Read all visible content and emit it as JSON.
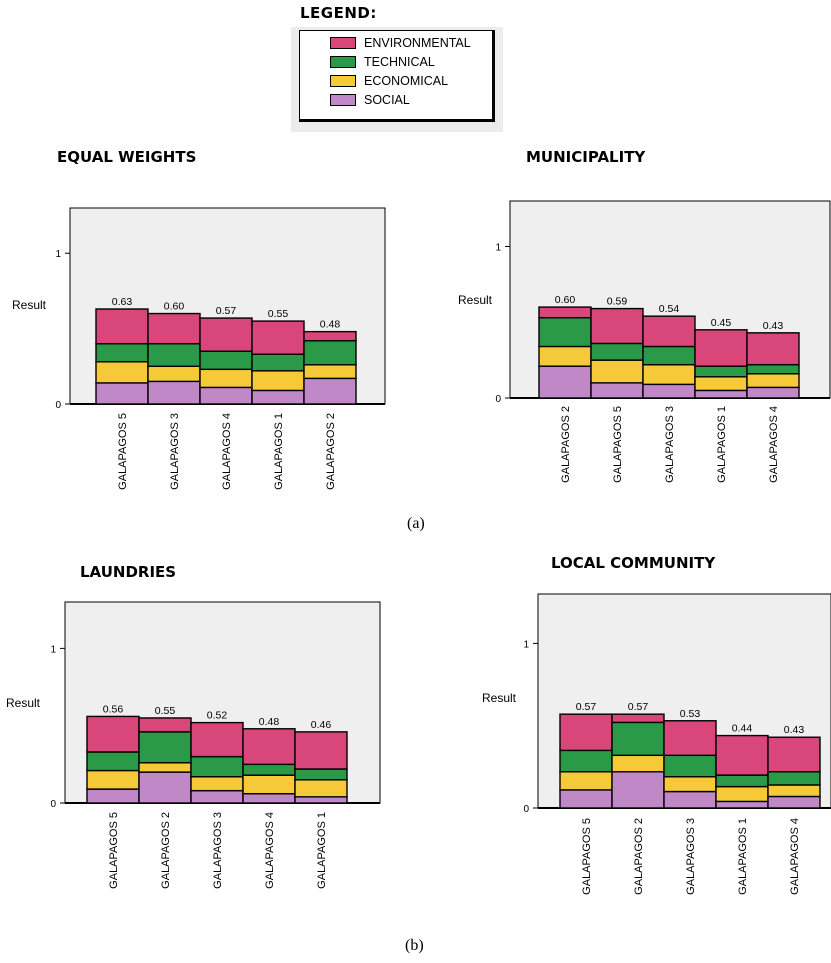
{
  "legend": {
    "title": "LEGEND:",
    "items": [
      {
        "label": "ENVIRONMENTAL",
        "color": "#d9467a"
      },
      {
        "label": "TECHNICAL",
        "color": "#2a9a48"
      },
      {
        "label": "ECONOMICAL",
        "color": "#f6c938"
      },
      {
        "label": "SOCIAL",
        "color": "#c088c7"
      }
    ]
  },
  "captions": {
    "a": "(a)",
    "b": "(b)"
  },
  "chart_data": [
    {
      "type": "bar",
      "stacked": true,
      "title": "EQUAL WEIGHTS",
      "ylabel": "Result",
      "ylim": [
        0,
        1.3
      ],
      "yticks": [
        "0",
        "1"
      ],
      "categories": [
        "GALAPAGOS 5",
        "GALAPAGOS 3",
        "GALAPAGOS 4",
        "GALAPAGOS 1",
        "GALAPAGOS 2"
      ],
      "totals": [
        "0.63",
        "0.60",
        "0.57",
        "0.55",
        "0.48"
      ],
      "series": [
        {
          "name": "SOCIAL",
          "color": "#c088c7",
          "values": [
            0.14,
            0.15,
            0.11,
            0.09,
            0.17
          ]
        },
        {
          "name": "ECONOMICAL",
          "color": "#f6c938",
          "values": [
            0.14,
            0.1,
            0.12,
            0.13,
            0.09
          ]
        },
        {
          "name": "TECHNICAL",
          "color": "#2a9a48",
          "values": [
            0.12,
            0.15,
            0.12,
            0.11,
            0.16
          ]
        },
        {
          "name": "ENVIRONMENTAL",
          "color": "#d9467a",
          "values": [
            0.23,
            0.2,
            0.22,
            0.22,
            0.06
          ]
        }
      ]
    },
    {
      "type": "bar",
      "stacked": true,
      "title": "MUNICIPALITY",
      "ylabel": "Result",
      "ylim": [
        0,
        1.3
      ],
      "yticks": [
        "0",
        "1"
      ],
      "categories": [
        "GALAPAGOS 2",
        "GALAPAGOS 5",
        "GALAPAGOS 3",
        "GALAPAGOS 1",
        "GALAPAGOS 4"
      ],
      "totals": [
        "0.60",
        "0.59",
        "0.54",
        "0.45",
        "0.43"
      ],
      "series": [
        {
          "name": "SOCIAL",
          "color": "#c088c7",
          "values": [
            0.21,
            0.1,
            0.09,
            0.05,
            0.07
          ]
        },
        {
          "name": "ECONOMICAL",
          "color": "#f6c938",
          "values": [
            0.13,
            0.15,
            0.13,
            0.09,
            0.09
          ]
        },
        {
          "name": "TECHNICAL",
          "color": "#2a9a48",
          "values": [
            0.19,
            0.11,
            0.12,
            0.07,
            0.06
          ]
        },
        {
          "name": "ENVIRONMENTAL",
          "color": "#d9467a",
          "values": [
            0.07,
            0.23,
            0.2,
            0.24,
            0.21
          ]
        }
      ]
    },
    {
      "type": "bar",
      "stacked": true,
      "title": "LAUNDRIES",
      "ylabel": "Result",
      "ylim": [
        0,
        1.3
      ],
      "yticks": [
        "0",
        "1"
      ],
      "categories": [
        "GALAPAGOS 5",
        "GALAPAGOS 2",
        "GALAPAGOS 3",
        "GALAPAGOS 4",
        "GALAPAGOS 1"
      ],
      "totals": [
        "0.56",
        "0.55",
        "0.52",
        "0.48",
        "0.46"
      ],
      "series": [
        {
          "name": "SOCIAL",
          "color": "#c088c7",
          "values": [
            0.09,
            0.2,
            0.08,
            0.06,
            0.04
          ]
        },
        {
          "name": "ECONOMICAL",
          "color": "#f6c938",
          "values": [
            0.12,
            0.06,
            0.09,
            0.12,
            0.11
          ]
        },
        {
          "name": "TECHNICAL",
          "color": "#2a9a48",
          "values": [
            0.12,
            0.2,
            0.13,
            0.07,
            0.07
          ]
        },
        {
          "name": "ENVIRONMENTAL",
          "color": "#d9467a",
          "values": [
            0.23,
            0.09,
            0.22,
            0.23,
            0.24
          ]
        }
      ]
    },
    {
      "type": "bar",
      "stacked": true,
      "title": "LOCAL COMMUNITY",
      "ylabel": "Result",
      "ylim": [
        0,
        1.3
      ],
      "yticks": [
        "0",
        "1"
      ],
      "categories": [
        "GALAPAGOS 5",
        "GALAPAGOS 2",
        "GALAPAGOS 3",
        "GALAPAGOS 1",
        "GALAPAGOS 4"
      ],
      "totals": [
        "0.57",
        "0.57",
        "0.53",
        "0.44",
        "0.43"
      ],
      "series": [
        {
          "name": "SOCIAL",
          "color": "#c088c7",
          "values": [
            0.11,
            0.22,
            0.1,
            0.04,
            0.07
          ]
        },
        {
          "name": "ECONOMICAL",
          "color": "#f6c938",
          "values": [
            0.11,
            0.1,
            0.09,
            0.09,
            0.07
          ]
        },
        {
          "name": "TECHNICAL",
          "color": "#2a9a48",
          "values": [
            0.13,
            0.2,
            0.13,
            0.07,
            0.08
          ]
        },
        {
          "name": "ENVIRONMENTAL",
          "color": "#d9467a",
          "values": [
            0.22,
            0.05,
            0.21,
            0.24,
            0.21
          ]
        }
      ]
    }
  ]
}
